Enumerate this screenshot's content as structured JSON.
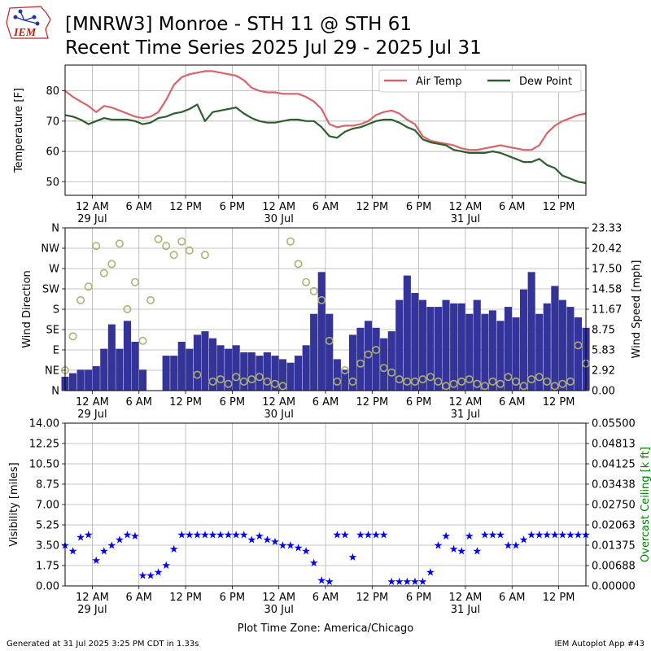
{
  "header": {
    "logo_text": "IEM",
    "title_line1": "[MNRW3] Monroe - STH 11 @ STH 61",
    "title_line2": "Recent Time Series 2025 Jul 29 - 2025 Jul 31"
  },
  "footer": {
    "generated": "Generated at 31 Jul 2025 3:25 PM CDT in 1.33s",
    "app": "IEM Autoplot App #43",
    "timezone_label": "Plot Time Zone: America/Chicago"
  },
  "colors": {
    "air_temp": "#d9636b",
    "dew_point": "#2e5e2e",
    "wind_speed": "#333399",
    "wind_dir": "#b0b072",
    "visibility": "#0000ee",
    "ceiling_label": "#008000",
    "grid": "#b0b0b0"
  },
  "x_axis": {
    "hours_range": [
      -3.5,
      63.5
    ],
    "ticks": [
      {
        "hour": 0,
        "label": "12 AM",
        "date": "29 Jul"
      },
      {
        "hour": 6,
        "label": "6 AM",
        "date": ""
      },
      {
        "hour": 12,
        "label": "12 PM",
        "date": ""
      },
      {
        "hour": 18,
        "label": "6 PM",
        "date": ""
      },
      {
        "hour": 24,
        "label": "12 AM",
        "date": "30 Jul"
      },
      {
        "hour": 30,
        "label": "6 AM",
        "date": ""
      },
      {
        "hour": 36,
        "label": "12 PM",
        "date": ""
      },
      {
        "hour": 42,
        "label": "6 PM",
        "date": ""
      },
      {
        "hour": 48,
        "label": "12 AM",
        "date": "31 Jul"
      },
      {
        "hour": 54,
        "label": "6 AM",
        "date": ""
      },
      {
        "hour": 60,
        "label": "12 PM",
        "date": ""
      }
    ]
  },
  "chart_data": [
    {
      "type": "line",
      "panel": "temperature",
      "ylabel": "Temperature [F]",
      "ylim": [
        45.5,
        88.5
      ],
      "yticks": [
        50,
        60,
        70,
        80
      ],
      "grid": true,
      "legend_position": "top-right",
      "x_unit": "hours since 2025-07-29 00:00 CDT",
      "series": [
        {
          "name": "Air Temp",
          "x": [
            -3.5,
            -2.5,
            -1.5,
            -0.5,
            0.5,
            1.5,
            2.5,
            3.5,
            4.5,
            5.5,
            6.5,
            7.5,
            8.5,
            9.5,
            10.5,
            11.5,
            12.5,
            13.5,
            14.5,
            15.5,
            16.5,
            17.5,
            18.5,
            19.5,
            20.5,
            21.5,
            22.5,
            23.5,
            24.5,
            25.5,
            26.5,
            27.5,
            28.5,
            29.5,
            30.5,
            31.5,
            32.5,
            33.5,
            34.5,
            35.5,
            36.5,
            37.5,
            38.5,
            39.5,
            40.5,
            41.5,
            42.5,
            43.5,
            44.5,
            45.5,
            46.5,
            47.5,
            48.5,
            49.5,
            50.5,
            51.5,
            52.5,
            53.5,
            54.5,
            55.5,
            56.5,
            57.5,
            58.5,
            59.5,
            60.5,
            61.5,
            62.5,
            63.5
          ],
          "values": [
            80.0,
            78.0,
            76.5,
            75.0,
            73.0,
            75.0,
            74.5,
            73.5,
            72.5,
            71.5,
            71.0,
            71.5,
            73.0,
            77.0,
            82.0,
            84.5,
            85.5,
            86.0,
            86.5,
            86.5,
            86.0,
            85.5,
            85.0,
            83.5,
            81.0,
            80.0,
            79.5,
            79.5,
            79.0,
            79.0,
            79.0,
            78.0,
            76.5,
            74.0,
            69.0,
            68.0,
            68.5,
            68.5,
            69.0,
            70.0,
            72.0,
            73.0,
            73.5,
            72.5,
            70.5,
            69.0,
            65.0,
            63.5,
            63.0,
            62.5,
            62.0,
            61.0,
            60.5,
            60.5,
            61.0,
            61.5,
            62.0,
            61.5,
            61.0,
            60.5,
            60.5,
            62.0,
            66.0,
            68.5,
            70.0,
            71.0,
            72.0,
            72.5
          ]
        },
        {
          "name": "Dew Point",
          "x": [
            -3.5,
            -2.5,
            -1.5,
            -0.5,
            0.5,
            1.5,
            2.5,
            3.5,
            4.5,
            5.5,
            6.5,
            7.5,
            8.5,
            9.5,
            10.5,
            11.5,
            12.5,
            13.5,
            14.5,
            15.5,
            16.5,
            17.5,
            18.5,
            19.5,
            20.5,
            21.5,
            22.5,
            23.5,
            24.5,
            25.5,
            26.5,
            27.5,
            28.5,
            29.5,
            30.5,
            31.5,
            32.5,
            33.5,
            34.5,
            35.5,
            36.5,
            37.5,
            38.5,
            39.5,
            40.5,
            41.5,
            42.5,
            43.5,
            44.5,
            45.5,
            46.5,
            47.5,
            48.5,
            49.5,
            50.5,
            51.5,
            52.5,
            53.5,
            54.5,
            55.5,
            56.5,
            57.5,
            58.5,
            59.5,
            60.5,
            61.5,
            62.5,
            63.5
          ],
          "values": [
            72.0,
            71.5,
            70.5,
            69.0,
            70.0,
            71.0,
            70.5,
            70.5,
            70.5,
            70.0,
            69.0,
            69.5,
            71.0,
            71.5,
            72.5,
            73.0,
            74.0,
            75.5,
            70.0,
            73.0,
            73.5,
            74.0,
            74.5,
            72.5,
            71.0,
            70.0,
            69.5,
            69.5,
            70.0,
            70.5,
            70.5,
            70.0,
            70.0,
            68.0,
            65.0,
            64.5,
            66.5,
            67.5,
            68.0,
            69.0,
            70.0,
            70.5,
            70.5,
            69.5,
            68.0,
            67.0,
            64.0,
            63.0,
            62.5,
            62.0,
            60.5,
            60.0,
            59.5,
            59.5,
            59.5,
            60.0,
            59.5,
            58.5,
            57.5,
            56.5,
            56.5,
            57.5,
            55.5,
            54.5,
            52.0,
            51.0,
            50.0,
            49.5
          ]
        }
      ]
    },
    {
      "type": "bar",
      "panel": "wind",
      "ylabel": "Wind Direction",
      "y2label": "Wind Speed [mph]",
      "ylim": [
        0,
        360
      ],
      "y_ticks": [
        "N",
        "NE",
        "E",
        "SE",
        "S",
        "SW",
        "W",
        "NW",
        "N"
      ],
      "y2lim": [
        0,
        23.33
      ],
      "y2_ticks": [
        "0.00",
        "2.92",
        "5.83",
        "8.75",
        "11.67",
        "14.58",
        "17.50",
        "20.42",
        "23.33"
      ],
      "grid": true,
      "x_unit": "hours since 2025-07-29 00:00 CDT",
      "series": [
        {
          "name": "Wind Speed",
          "x": [
            -3.5,
            -2.5,
            -1.5,
            -0.5,
            0.5,
            1.5,
            2.5,
            3.5,
            4.5,
            5.5,
            6.5,
            7.5,
            8.5,
            9.5,
            10.5,
            11.5,
            12.5,
            13.5,
            14.5,
            15.5,
            16.5,
            17.5,
            18.5,
            19.5,
            20.5,
            21.5,
            22.5,
            23.5,
            24.5,
            25.5,
            26.5,
            27.5,
            28.5,
            29.5,
            30.5,
            31.5,
            32.5,
            33.5,
            34.5,
            35.5,
            36.5,
            37.5,
            38.5,
            39.5,
            40.5,
            41.5,
            42.5,
            43.5,
            44.5,
            45.5,
            46.5,
            47.5,
            48.5,
            49.5,
            50.5,
            51.5,
            52.5,
            53.5,
            54.5,
            55.5,
            56.5,
            57.5,
            58.5,
            59.5,
            60.5,
            61.5,
            62.5,
            63.5
          ],
          "values": [
            2.0,
            2.5,
            3.0,
            3.0,
            3.5,
            6.0,
            9.5,
            6.0,
            10.0,
            7.0,
            3.0,
            0.0,
            0.0,
            5.0,
            5.0,
            7.0,
            6.0,
            8.0,
            8.5,
            7.5,
            6.5,
            6.0,
            6.5,
            5.5,
            5.5,
            5.0,
            5.5,
            5.0,
            4.5,
            4.0,
            5.0,
            6.5,
            11.0,
            17.0,
            11.0,
            4.5,
            3.0,
            8.0,
            9.0,
            10.0,
            9.0,
            7.5,
            8.5,
            13.0,
            16.5,
            14.0,
            13.0,
            12.0,
            12.0,
            13.0,
            12.5,
            12.5,
            11.0,
            13.0,
            11.0,
            11.5,
            10.0,
            12.0,
            10.5,
            14.5,
            17.0,
            11.0,
            12.5,
            15.0,
            13.0,
            12.0,
            10.5,
            9.0
          ]
        },
        {
          "name": "Wind Direction",
          "x": [
            -3.5,
            -2.5,
            -1.5,
            -0.5,
            0.5,
            1.5,
            2.5,
            3.5,
            4.5,
            5.5,
            6.5,
            7.5,
            8.5,
            9.5,
            10.5,
            11.5,
            12.5,
            13.5,
            14.5,
            15.5,
            16.5,
            17.5,
            18.5,
            19.5,
            20.5,
            21.5,
            22.5,
            23.5,
            24.5,
            25.5,
            26.5,
            27.5,
            28.5,
            29.5,
            30.5,
            31.5,
            32.5,
            33.5,
            34.5,
            35.5,
            36.5,
            37.5,
            38.5,
            39.5,
            40.5,
            41.5,
            42.5,
            43.5,
            44.5,
            45.5,
            46.5,
            47.5,
            48.5,
            49.5,
            50.5,
            51.5,
            52.5,
            53.5,
            54.5,
            55.5,
            56.5,
            57.5,
            58.5,
            59.5,
            60.5,
            61.5,
            62.5,
            63.5
          ],
          "values": [
            45,
            120,
            200,
            230,
            320,
            260,
            280,
            325,
            180,
            240,
            110,
            200,
            335,
            320,
            300,
            330,
            310,
            35,
            300,
            20,
            25,
            15,
            30,
            20,
            25,
            30,
            20,
            15,
            10,
            330,
            280,
            240,
            220,
            200,
            110,
            20,
            45,
            20,
            60,
            80,
            90,
            50,
            40,
            25,
            20,
            20,
            25,
            30,
            20,
            10,
            15,
            20,
            25,
            15,
            10,
            20,
            15,
            30,
            20,
            10,
            25,
            30,
            20,
            10,
            15,
            20,
            100,
            60
          ]
        }
      ]
    },
    {
      "type": "scatter",
      "panel": "visibility",
      "ylabel": "Visibility [miles]",
      "y2label": "Overcast Ceiling [k ft]",
      "ylim": [
        0,
        14.0
      ],
      "y_ticks": [
        "0.00",
        "1.75",
        "3.50",
        "5.25",
        "7.00",
        "8.75",
        "10.50",
        "12.25",
        "14.00"
      ],
      "y2lim": [
        0,
        0.055
      ],
      "y2_ticks": [
        "0.00000",
        "0.00688",
        "0.01375",
        "0.02063",
        "0.02750",
        "0.03438",
        "0.04125",
        "0.04813",
        "0.05500"
      ],
      "grid": true,
      "marker": "star",
      "x_unit": "hours since 2025-07-29 00:00 CDT",
      "series": [
        {
          "name": "Visibility",
          "x": [
            -3.5,
            -2.5,
            -1.5,
            -0.5,
            0.5,
            1.5,
            2.5,
            3.5,
            4.5,
            5.5,
            6.5,
            7.5,
            8.5,
            9.5,
            10.5,
            11.5,
            12.5,
            13.5,
            14.5,
            15.5,
            16.5,
            17.5,
            18.5,
            19.5,
            20.5,
            21.5,
            22.5,
            23.5,
            24.5,
            25.5,
            26.5,
            27.5,
            28.5,
            29.5,
            30.5,
            31.5,
            32.5,
            33.5,
            34.5,
            35.5,
            36.5,
            37.5,
            38.5,
            39.5,
            40.5,
            41.5,
            42.5,
            43.5,
            44.5,
            45.5,
            46.5,
            47.5,
            48.5,
            49.5,
            50.5,
            51.5,
            52.5,
            53.5,
            54.5,
            55.5,
            56.5,
            57.5,
            58.5,
            59.5,
            60.5,
            61.5,
            62.5,
            63.5
          ],
          "values": [
            3.5,
            3.0,
            4.2,
            4.4,
            2.2,
            3.0,
            3.5,
            4.0,
            4.4,
            4.3,
            0.9,
            0.9,
            1.2,
            1.8,
            3.2,
            4.4,
            4.4,
            4.4,
            4.4,
            4.4,
            4.4,
            4.4,
            4.4,
            4.4,
            4.0,
            4.3,
            4.0,
            3.8,
            3.5,
            3.5,
            3.3,
            3.0,
            2.0,
            0.5,
            0.4,
            4.4,
            4.4,
            2.5,
            4.4,
            4.4,
            4.4,
            4.4,
            0.4,
            0.4,
            0.4,
            0.4,
            0.4,
            1.2,
            3.5,
            4.3,
            3.2,
            3.0,
            4.3,
            3.0,
            4.4,
            4.4,
            4.4,
            3.5,
            3.5,
            4.0,
            4.4,
            4.4,
            4.4,
            4.4,
            4.4,
            4.4,
            4.4,
            4.4
          ]
        }
      ]
    }
  ]
}
